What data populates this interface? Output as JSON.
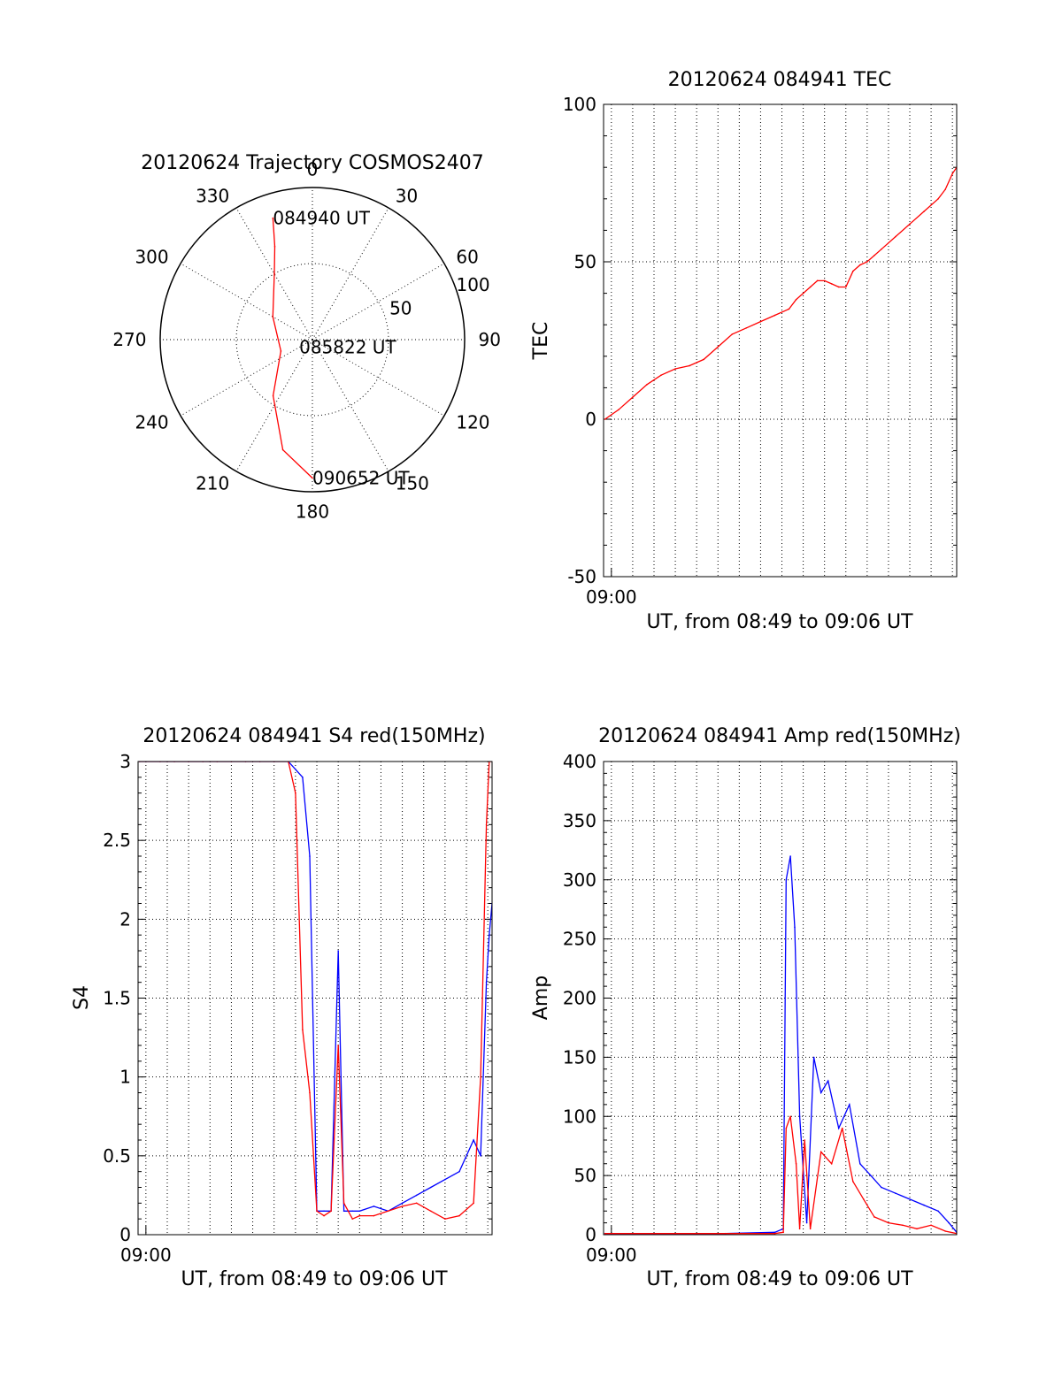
{
  "figure": {
    "background": "#ffffff"
  },
  "colors": {
    "red": "#ff0000",
    "blue": "#0000ff",
    "axis": "#000000"
  },
  "chart_data": [
    {
      "id": "trajectory",
      "type": "scatter",
      "subtype": "polar-skyplot",
      "title": "20120624 Trajectory COSMOS2407",
      "azimuth_labels": [
        "0",
        "30",
        "60",
        "90",
        "120",
        "150",
        "180",
        "210",
        "240",
        "270",
        "300",
        "330"
      ],
      "azimuth_label_values": [
        0,
        30,
        60,
        90,
        120,
        150,
        180,
        210,
        240,
        270,
        300,
        330
      ],
      "radial_labels": [
        "50",
        "100"
      ],
      "radial_label_values": [
        50,
        100
      ],
      "radial_grid_values": [
        50,
        100
      ],
      "r_max": 100,
      "direction": "clockwise",
      "zero_at": "top",
      "grid": true,
      "series": [
        {
          "color": "#ff0000",
          "points": [
            {
              "az": 342,
              "r": 84
            },
            {
              "az": 338,
              "r": 66
            },
            {
              "az": 330,
              "r": 50
            },
            {
              "az": 300,
              "r": 30
            },
            {
              "az": 250,
              "r": 22
            },
            {
              "az": 215,
              "r": 45
            },
            {
              "az": 195,
              "r": 75
            },
            {
              "az": 180,
              "r": 91
            }
          ]
        }
      ],
      "annotations": [
        {
          "text": "084940 UT",
          "az": 342,
          "r": 84
        },
        {
          "text": "085822 UT",
          "az": 240,
          "r": 10
        },
        {
          "text": "090652 UT",
          "az": 180,
          "r": 91
        }
      ]
    },
    {
      "id": "tec",
      "type": "line",
      "title": "20120624 084941 TEC",
      "xlabel": "UT, from 08:49 to 09:06 UT",
      "ylabel": "TEC",
      "xlim": [
        529,
        1026
      ],
      "ylim": [
        -50,
        100
      ],
      "yticks": [
        -50,
        0,
        50,
        100
      ],
      "xticks": [
        540
      ],
      "xtick_labels": [
        "09:00"
      ],
      "x_grid_step_seconds": 30,
      "grid": true,
      "series": [
        {
          "color": "#ff0000",
          "x": [
            531,
            550,
            570,
            590,
            610,
            630,
            650,
            670,
            690,
            710,
            730,
            750,
            770,
            790,
            800,
            810,
            820,
            830,
            840,
            850,
            860,
            870,
            880,
            890,
            900,
            910,
            920,
            940,
            960,
            980,
            1000,
            1010,
            1020,
            1026
          ],
          "y": [
            0,
            3,
            7,
            11,
            14,
            16,
            17,
            19,
            23,
            27,
            29,
            31,
            33,
            35,
            38,
            40,
            42,
            44,
            44,
            43,
            42,
            42,
            47,
            49,
            50,
            52,
            54,
            58,
            62,
            66,
            70,
            73,
            78,
            80
          ]
        }
      ]
    },
    {
      "id": "s4",
      "type": "line",
      "title": "20120624 084941 S4 red(150MHz)",
      "xlabel": "UT, from 08:49 to 09:06 UT",
      "ylabel": "S4",
      "xlim": [
        529,
        1026
      ],
      "ylim": [
        0,
        3
      ],
      "yticks": [
        0,
        0.5,
        1,
        1.5,
        2,
        2.5,
        3
      ],
      "ytick_labels": [
        "0",
        "0.5",
        "1",
        "1.5",
        "2",
        "2.5",
        "3"
      ],
      "xticks": [
        540
      ],
      "xtick_labels": [
        "09:00"
      ],
      "x_grid_step_seconds": 30,
      "grid": true,
      "series": [
        {
          "color": "#0000ff",
          "x": [
            531,
            560,
            580,
            600,
            620,
            640,
            660,
            680,
            700,
            720,
            740,
            760,
            770,
            780,
            790,
            800,
            810,
            818,
            830,
            840,
            860,
            880,
            900,
            920,
            940,
            960,
            980,
            1000,
            1010,
            1018,
            1022,
            1026
          ],
          "y": [
            3,
            3,
            3,
            3,
            3,
            3,
            3,
            3,
            3,
            3,
            3,
            2.9,
            2.4,
            0.15,
            0.15,
            0.15,
            1.8,
            0.15,
            0.15,
            0.15,
            0.18,
            0.15,
            0.2,
            0.25,
            0.3,
            0.35,
            0.4,
            0.6,
            0.5,
            1.6,
            1.9,
            2.1
          ]
        },
        {
          "color": "#ff0000",
          "x": [
            531,
            560,
            580,
            600,
            620,
            640,
            660,
            680,
            700,
            720,
            740,
            750,
            760,
            770,
            780,
            790,
            800,
            810,
            818,
            830,
            840,
            860,
            880,
            900,
            920,
            940,
            960,
            980,
            1000,
            1010,
            1018,
            1022,
            1026
          ],
          "y": [
            3,
            3,
            3,
            3,
            3,
            3,
            3,
            3,
            3,
            3,
            3,
            2.8,
            1.3,
            0.9,
            0.15,
            0.12,
            0.15,
            1.2,
            0.2,
            0.1,
            0.12,
            0.12,
            0.15,
            0.18,
            0.2,
            0.15,
            0.1,
            0.12,
            0.2,
            1,
            2.6,
            3,
            3
          ]
        }
      ]
    },
    {
      "id": "amp",
      "type": "line",
      "title": "20120624 084941 Amp red(150MHz)",
      "xlabel": "UT, from 08:49 to 09:06 UT",
      "ylabel": "Amp",
      "xlim": [
        529,
        1026
      ],
      "ylim": [
        0,
        400
      ],
      "yticks": [
        0,
        50,
        100,
        150,
        200,
        250,
        300,
        350,
        400
      ],
      "xticks": [
        540
      ],
      "xtick_labels": [
        "09:00"
      ],
      "x_grid_step_seconds": 30,
      "grid": true,
      "series": [
        {
          "color": "#0000ff",
          "x": [
            531,
            600,
            700,
            770,
            782,
            786,
            792,
            798,
            805,
            815,
            825,
            835,
            845,
            860,
            875,
            890,
            905,
            920,
            940,
            960,
            980,
            1000,
            1015,
            1026
          ],
          "y": [
            1,
            1,
            1,
            2,
            5,
            300,
            320,
            260,
            100,
            10,
            150,
            120,
            130,
            90,
            110,
            60,
            50,
            40,
            35,
            30,
            25,
            20,
            10,
            2
          ]
        },
        {
          "color": "#ff0000",
          "x": [
            531,
            770,
            782,
            786,
            792,
            800,
            805,
            812,
            820,
            835,
            850,
            865,
            880,
            895,
            910,
            930,
            950,
            970,
            990,
            1010,
            1026
          ],
          "y": [
            1,
            1,
            2,
            90,
            100,
            60,
            5,
            80,
            5,
            70,
            60,
            90,
            45,
            30,
            15,
            10,
            8,
            5,
            8,
            3,
            1
          ]
        }
      ]
    }
  ]
}
